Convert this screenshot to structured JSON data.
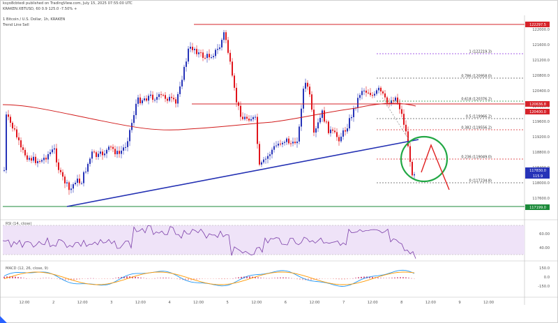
{
  "header": {
    "line1": "ksyo8cbtedi published on TradingView.com, July 15, 2025 07:55:00 UTC",
    "line2": "KRAKEN:XBTUSD, 60  0.9  125.0  -7.50%  +",
    "line3": "1 Bitcoin / U.S. Dollar, 1h, KRAKEN",
    "line4": "Trend Line Sell"
  },
  "colors": {
    "up": "#2633b8",
    "down": "#e0151c",
    "ma": "#d11a1a",
    "trendline": "#2431b3",
    "resistance": "#d6232a",
    "support": "#1b8a39",
    "circle": "#22a845",
    "arrow": "#e02020",
    "rsi_band": "#efe3f8",
    "rsi_line": "#7b3ea8",
    "macd": "#2196f3",
    "signal": "#ff9800"
  },
  "chart_data": {
    "type": "candlestick",
    "ylim": [
      11760,
      12340
    ],
    "price_ticks": [
      "122000.0",
      "121600.0",
      "121200.0",
      "120800.0",
      "120400.0",
      "120000.0",
      "119600.0",
      "119200.0",
      "118800.0",
      "118400.0",
      "118000.0",
      "117600.0"
    ],
    "x_labels": [
      "12:00",
      "2",
      "12:00",
      "3",
      "12:00",
      "4",
      "12:00",
      "5",
      "12:00",
      "6",
      "12:00",
      "7",
      "12:00",
      "8",
      "12:00",
      "9",
      "12:00"
    ],
    "levels": [
      {
        "label": "1 (122219.3)",
        "value": 122219,
        "color": "#8a2be2"
      },
      {
        "label": "0.786 (120958.0)",
        "value": 120958,
        "color": "#555555"
      },
      {
        "label": "0.618 (120376.2)",
        "value": 120376,
        "color": "#1b8a39"
      },
      {
        "label": "0.5 (119966.2)",
        "value": 119966,
        "color": "#555555"
      },
      {
        "label": "0.382 (119556.2)",
        "value": 119556,
        "color": "#d6232a"
      },
      {
        "label": "0.236 (119049.0)",
        "value": 119049,
        "color": "#d6232a"
      },
      {
        "label": "0 (117234.8)",
        "value": 117235,
        "color": "#555555"
      }
    ],
    "tags": [
      {
        "text": "122297.5",
        "color": "#d6232a"
      },
      {
        "text": "120636.8",
        "color": "#d6232a"
      },
      {
        "text": "120400.0",
        "color": "#d6232a"
      },
      {
        "text": "117830.0",
        "color": "#2633b8"
      },
      {
        "text": "115.9",
        "color": "#2633b8"
      },
      {
        "text": "117199.0",
        "color": "#1b8a39"
      }
    ],
    "rsi": {
      "label": "RSI (14, close)",
      "ticks": [
        "60.00",
        "40.00"
      ]
    },
    "macd": {
      "label": "MACD (12, 26, close, 9)",
      "ticks": [
        "150.0",
        "0.0",
        "-150.0"
      ]
    }
  }
}
